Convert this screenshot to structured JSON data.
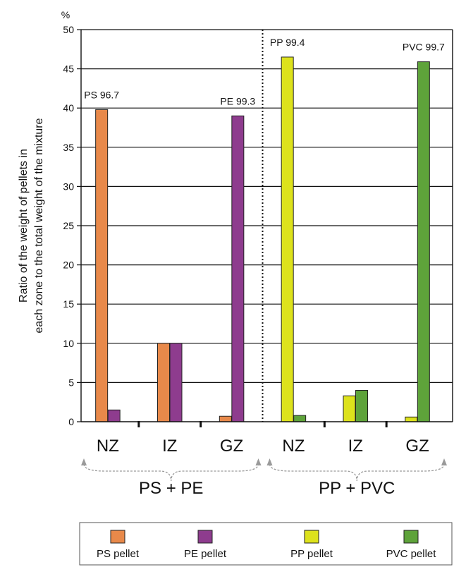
{
  "chart_data": {
    "type": "bar",
    "y_unit_label": "%",
    "ylabel_line1": "Ratio of the weight of pellets in",
    "ylabel_line2": "each zone to the total weight of the mixture",
    "ylim": [
      0,
      50
    ],
    "yticks": [
      0,
      5,
      10,
      15,
      20,
      25,
      30,
      35,
      40,
      45,
      50
    ],
    "grid": true,
    "groups": [
      {
        "name": "PS + PE",
        "categories": [
          "NZ",
          "IZ",
          "GZ"
        ],
        "series": [
          {
            "name": "PS pellet",
            "values": [
              39.8,
              10.0,
              0.7
            ]
          },
          {
            "name": "PE pellet",
            "values": [
              1.5,
              10.0,
              39.0
            ]
          }
        ],
        "annotations": [
          {
            "text": "PS 96.7",
            "category": "NZ"
          },
          {
            "text": "PE 99.3",
            "category": "GZ"
          }
        ]
      },
      {
        "name": "PP + PVC",
        "categories": [
          "NZ",
          "IZ",
          "GZ"
        ],
        "series": [
          {
            "name": "PP pellet",
            "values": [
              46.5,
              3.3,
              0.6
            ]
          },
          {
            "name": "PVC pellet",
            "values": [
              0.8,
              4.0,
              45.9
            ]
          }
        ],
        "annotations": [
          {
            "text": "PP 99.4",
            "category": "NZ"
          },
          {
            "text": "PVC 99.7",
            "category": "GZ"
          }
        ]
      }
    ],
    "legend": {
      "placement": "bottom",
      "items": [
        {
          "name": "PS pellet",
          "color": "#E8894A"
        },
        {
          "name": "PE pellet",
          "color": "#8E3C8E"
        },
        {
          "name": "PP pellet",
          "color": "#DDE21C"
        },
        {
          "name": "PVC pellet",
          "color": "#5EA33A"
        }
      ]
    }
  }
}
